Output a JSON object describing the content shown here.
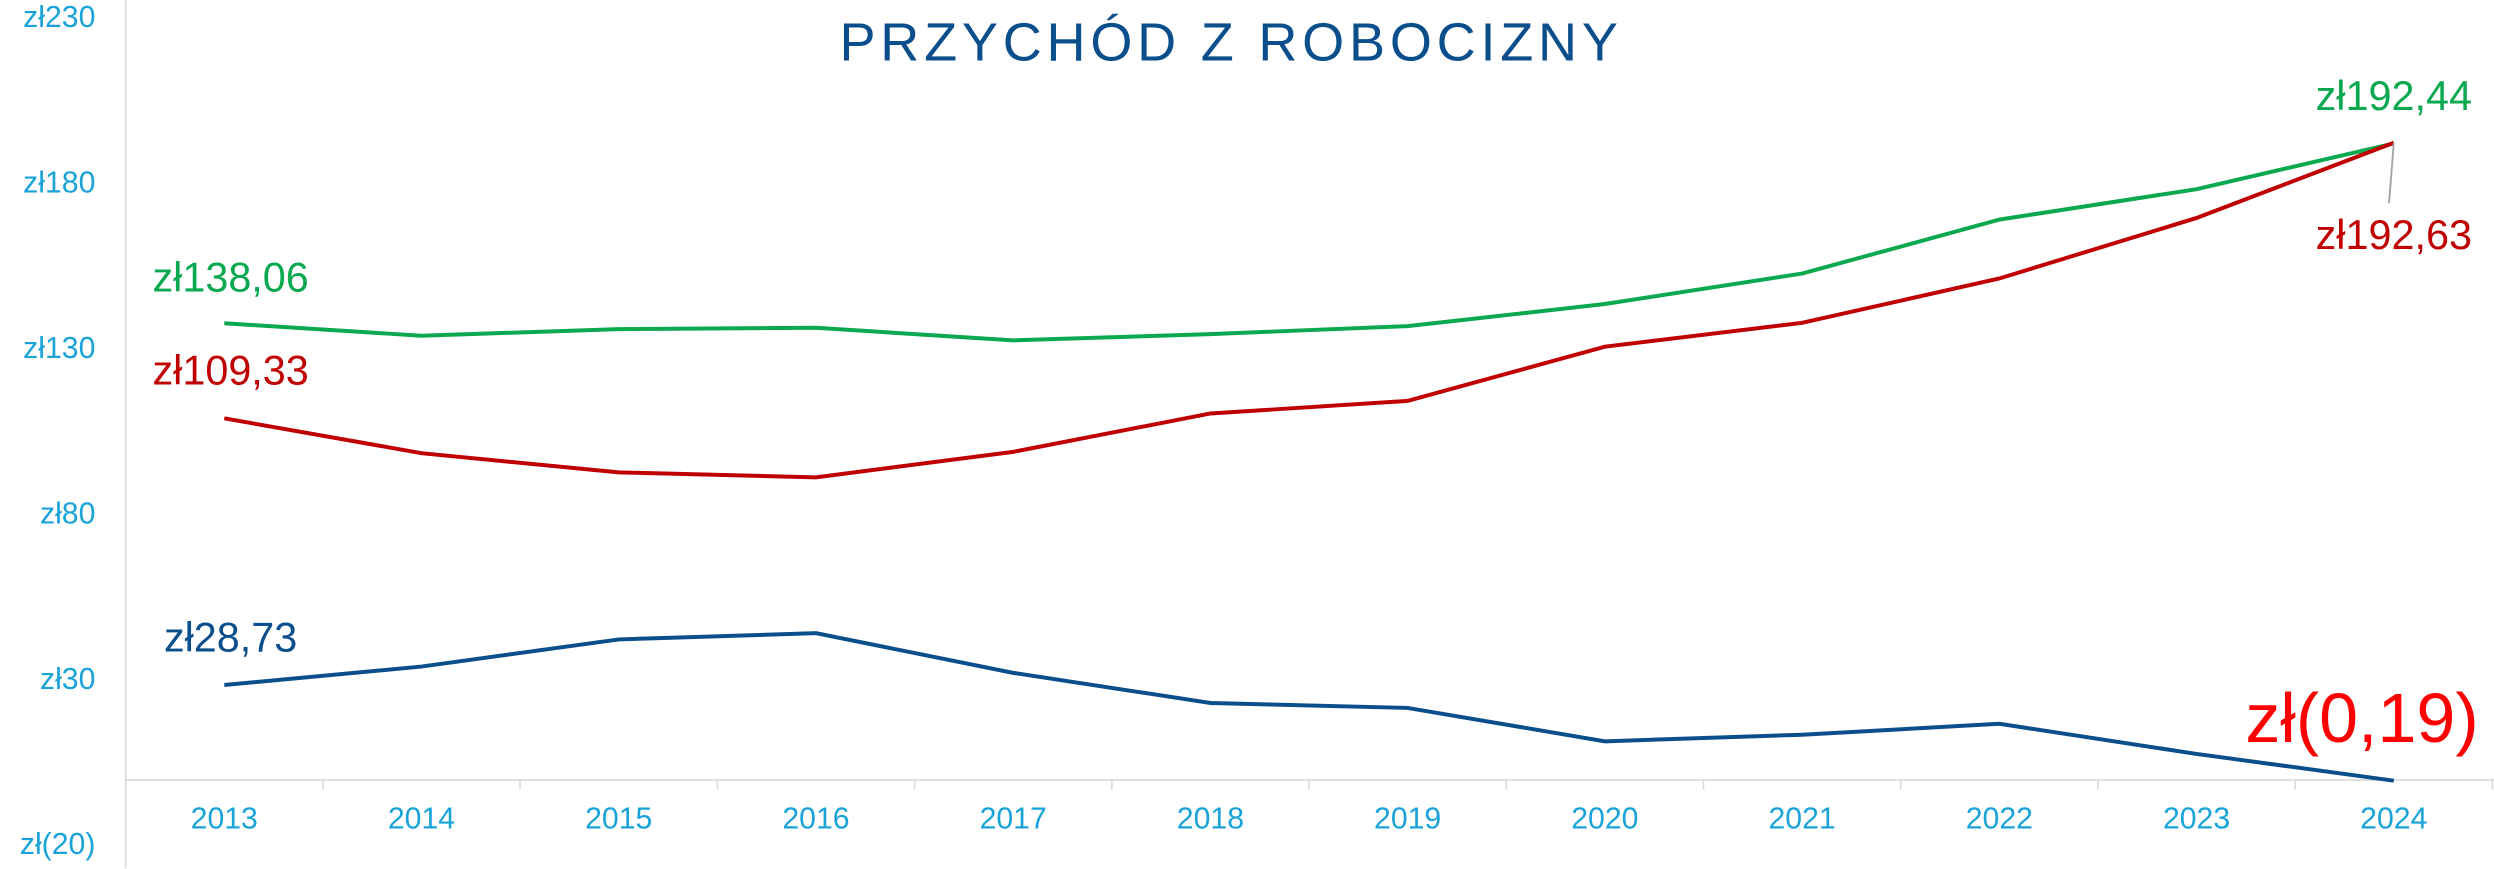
{
  "chart_data": {
    "type": "line",
    "title": "PRZYCHÓD Z ROBOCIZNY",
    "categories": [
      "2013",
      "2014",
      "2015",
      "2016",
      "2017",
      "2018",
      "2019",
      "2020",
      "2021",
      "2022",
      "2023",
      "2024"
    ],
    "ylim": [
      -20,
      230
    ],
    "yticks": [
      {
        "value": -20,
        "label": "zł(20)"
      },
      {
        "value": 30,
        "label": "zł30"
      },
      {
        "value": 80,
        "label": "zł80"
      },
      {
        "value": 130,
        "label": "zł130"
      },
      {
        "value": 180,
        "label": "zł180"
      },
      {
        "value": 230,
        "label": "zł230"
      }
    ],
    "grid": false,
    "series": [
      {
        "color": "#0aa84f",
        "values": [
          138.06,
          134.3,
          136.3,
          136.7,
          132.9,
          134.8,
          137.2,
          143.9,
          153.1,
          169.4,
          178.6,
          192.44
        ],
        "value_labels": [
          "zł138,06",
          null,
          null,
          null,
          null,
          null,
          null,
          null,
          null,
          null,
          null,
          "zł192,44"
        ]
      },
      {
        "color": "#c00000",
        "values": [
          109.33,
          98.8,
          93.0,
          91.5,
          99.2,
          110.8,
          114.6,
          131.0,
          138.2,
          151.6,
          169.9,
          192.63
        ],
        "value_labels": [
          "zł109,33",
          null,
          null,
          null,
          null,
          null,
          null,
          null,
          null,
          null,
          null,
          "zł192,63"
        ]
      },
      {
        "color": "#0b4e8c",
        "values": [
          28.73,
          34.3,
          42.5,
          44.4,
          32.4,
          23.3,
          21.8,
          11.7,
          13.7,
          17.0,
          7.9,
          -0.19
        ],
        "value_labels": [
          "zł28,73",
          null,
          null,
          null,
          null,
          null,
          null,
          null,
          null,
          null,
          null,
          "zł(0,19)"
        ]
      }
    ]
  }
}
